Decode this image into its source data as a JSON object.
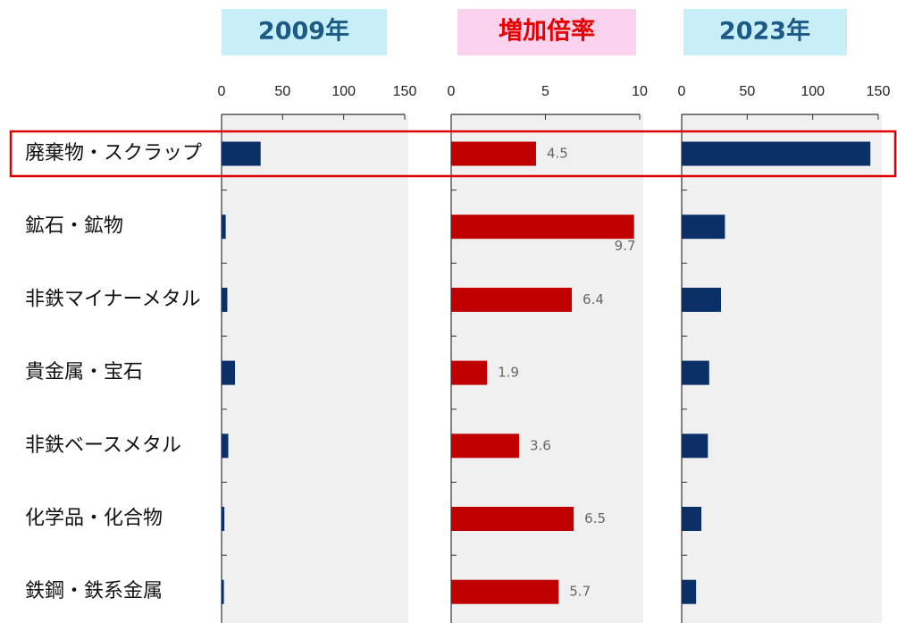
{
  "chart_data": [
    {
      "type": "hbar",
      "title": "2009年",
      "color": "#0b3068",
      "categories": [
        "廃棄物・スクラップ",
        "鉱石・鉱物",
        "非鉄マイナーメタル",
        "貴金属・宝石",
        "非鉄ベースメタル",
        "化学品・化合物",
        "鉄鋼・鉄系金属"
      ],
      "values": [
        32,
        3.4,
        4.7,
        11,
        5.5,
        2.3,
        1.9
      ],
      "xlim": [
        0,
        150
      ],
      "xticks": [
        0,
        50,
        100,
        150
      ]
    },
    {
      "type": "hbar",
      "title": "増加倍率",
      "color": "#c00000",
      "values": [
        4.5,
        9.7,
        6.4,
        1.9,
        3.6,
        6.5,
        5.7
      ],
      "data_labels": true,
      "xlim": [
        0,
        10
      ],
      "xticks": [
        0,
        5,
        10
      ]
    },
    {
      "type": "hbar",
      "title": "2023年",
      "color": "#0b3068",
      "values": [
        144,
        33,
        30,
        21,
        20,
        15,
        11
      ],
      "xlim": [
        0,
        150
      ],
      "xticks": [
        0,
        50,
        100,
        150
      ]
    }
  ]
}
